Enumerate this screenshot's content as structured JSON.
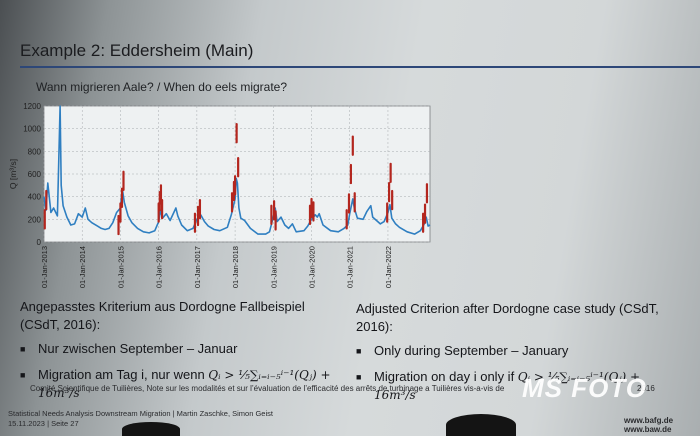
{
  "slide": {
    "title": "Example 2: Eddersheim (Main)",
    "subtitle": "Wann migrieren Aale? / When do eels migrate?"
  },
  "chart_data": {
    "type": "line",
    "ylabel": "Q [m³/s]",
    "ylim": [
      0,
      1200
    ],
    "yticks": [
      0,
      200,
      400,
      600,
      800,
      1000,
      1200
    ],
    "xtick_labels": [
      "01-Jan-2013",
      "01-Jan-2014",
      "01-Jan-2015",
      "01-Jan-2016",
      "01-Jan-2017",
      "01-Jan-2018",
      "01-Jan-2019",
      "01-Jan-2020",
      "01-Jan-2021",
      "01-Jan-2022"
    ],
    "x_range_years": [
      2013.0,
      2023.1
    ],
    "grid": true,
    "series": [
      {
        "color": "#2f7fc1",
        "points": [
          [
            2013.0,
            400
          ],
          [
            2013.05,
            280
          ],
          [
            2013.1,
            520
          ],
          [
            2013.18,
            260
          ],
          [
            2013.25,
            300
          ],
          [
            2013.35,
            230
          ],
          [
            2013.42,
            1200
          ],
          [
            2013.45,
            500
          ],
          [
            2013.5,
            320
          ],
          [
            2013.6,
            220
          ],
          [
            2013.7,
            150
          ],
          [
            2013.8,
            160
          ],
          [
            2013.9,
            250
          ],
          [
            2014.0,
            220
          ],
          [
            2014.08,
            300
          ],
          [
            2014.15,
            200
          ],
          [
            2014.25,
            170
          ],
          [
            2014.4,
            140
          ],
          [
            2014.5,
            120
          ],
          [
            2014.6,
            110
          ],
          [
            2014.7,
            120
          ],
          [
            2014.8,
            170
          ],
          [
            2014.9,
            260
          ],
          [
            2015.0,
            300
          ],
          [
            2015.05,
            470
          ],
          [
            2015.1,
            350
          ],
          [
            2015.2,
            230
          ],
          [
            2015.3,
            170
          ],
          [
            2015.45,
            120
          ],
          [
            2015.6,
            90
          ],
          [
            2015.75,
            80
          ],
          [
            2015.9,
            100
          ],
          [
            2016.0,
            180
          ],
          [
            2016.05,
            280
          ],
          [
            2016.1,
            210
          ],
          [
            2016.2,
            250
          ],
          [
            2016.3,
            190
          ],
          [
            2016.45,
            300
          ],
          [
            2016.5,
            230
          ],
          [
            2016.6,
            150
          ],
          [
            2016.75,
            100
          ],
          [
            2016.9,
            120
          ],
          [
            2017.0,
            200
          ],
          [
            2017.1,
            240
          ],
          [
            2017.2,
            180
          ],
          [
            2017.3,
            140
          ],
          [
            2017.45,
            110
          ],
          [
            2017.6,
            100
          ],
          [
            2017.8,
            130
          ],
          [
            2017.9,
            240
          ],
          [
            2018.0,
            380
          ],
          [
            2018.03,
            560
          ],
          [
            2018.06,
            520
          ],
          [
            2018.1,
            300
          ],
          [
            2018.15,
            210
          ],
          [
            2018.25,
            190
          ],
          [
            2018.4,
            120
          ],
          [
            2018.6,
            70
          ],
          [
            2018.8,
            70
          ],
          [
            2018.9,
            90
          ],
          [
            2019.0,
            220
          ],
          [
            2019.05,
            300
          ],
          [
            2019.1,
            180
          ],
          [
            2019.2,
            220
          ],
          [
            2019.3,
            150
          ],
          [
            2019.4,
            120
          ],
          [
            2019.5,
            160
          ],
          [
            2019.6,
            90
          ],
          [
            2019.8,
            100
          ],
          [
            2019.9,
            140
          ],
          [
            2020.0,
            200
          ],
          [
            2020.1,
            240
          ],
          [
            2020.15,
            220
          ],
          [
            2020.2,
            250
          ],
          [
            2020.3,
            150
          ],
          [
            2020.5,
            100
          ],
          [
            2020.7,
            90
          ],
          [
            2020.85,
            120
          ],
          [
            2020.95,
            150
          ],
          [
            2021.0,
            250
          ],
          [
            2021.08,
            380
          ],
          [
            2021.12,
            300
          ],
          [
            2021.2,
            210
          ],
          [
            2021.35,
            200
          ],
          [
            2021.45,
            270
          ],
          [
            2021.55,
            320
          ],
          [
            2021.6,
            220
          ],
          [
            2021.7,
            190
          ],
          [
            2021.8,
            160
          ],
          [
            2021.9,
            180
          ],
          [
            2022.0,
            260
          ],
          [
            2022.05,
            330
          ],
          [
            2022.1,
            210
          ],
          [
            2022.2,
            160
          ],
          [
            2022.3,
            130
          ],
          [
            2022.5,
            90
          ],
          [
            2022.7,
            70
          ],
          [
            2022.85,
            100
          ],
          [
            2022.95,
            160
          ],
          [
            2023.0,
            220
          ],
          [
            2023.05,
            140
          ],
          [
            2023.1,
            150
          ]
        ]
      },
      {
        "color": "#b3261e",
        "points": [
          [
            2013.02,
            280
          ],
          [
            2013.06,
            450
          ],
          [
            2014.95,
            230
          ],
          [
            2015.0,
            340
          ],
          [
            2015.04,
            470
          ],
          [
            2015.08,
            620
          ],
          [
            2016.0,
            340
          ],
          [
            2016.03,
            440
          ],
          [
            2016.06,
            500
          ],
          [
            2016.09,
            370
          ],
          [
            2016.95,
            250
          ],
          [
            2017.03,
            310
          ],
          [
            2017.08,
            370
          ],
          [
            2017.92,
            430
          ],
          [
            2017.97,
            530
          ],
          [
            2018.0,
            580
          ],
          [
            2018.04,
            1040
          ],
          [
            2018.08,
            740
          ],
          [
            2018.95,
            320
          ],
          [
            2019.02,
            360
          ],
          [
            2019.06,
            270
          ],
          [
            2019.96,
            320
          ],
          [
            2020.0,
            380
          ],
          [
            2020.05,
            350
          ],
          [
            2020.92,
            280
          ],
          [
            2020.98,
            420
          ],
          [
            2021.03,
            680
          ],
          [
            2021.08,
            930
          ],
          [
            2021.13,
            430
          ],
          [
            2021.98,
            340
          ],
          [
            2022.03,
            520
          ],
          [
            2022.07,
            690
          ],
          [
            2022.11,
            450
          ],
          [
            2022.92,
            250
          ],
          [
            2022.97,
            330
          ],
          [
            2023.02,
            510
          ]
        ]
      }
    ]
  },
  "left_block": {
    "heading": "Angepasstes Kriterium aus Dordogne Fallbeispiel (CSdT, 2016):",
    "bullet1": "Nur zwischen September – Januar",
    "bullet2_text": "Migration am Tag i, nur wenn ",
    "formula": "Qᵢ > ⅕∑ᵢ₌ᵢ₋₅ⁱ⁻¹(Qⱼ) + 16m³/s"
  },
  "right_block": {
    "heading": "Adjusted Criterion after Dordogne case study (CSdT, 2016):",
    "bullet1": "Only during September – January",
    "bullet2_text": "Migration on day i only if ",
    "formula": "Qᵢ > ⅕∑ᵢ₌ᵢ₋₅ⁱ⁻¹(Qⱼ) + 16m³/s"
  },
  "bullet_glyph": "■",
  "footnote": "Comité Scientifique de Tuilières, Note sur les modalités et sur l’évaluation de l’efficacité des arrêts de turbinage a Tuilières vis-a-vis de",
  "footnote_tail": "2016",
  "footer": {
    "line1": "Statistical Needs Analysis Downstream Migration | Martin Zaschke, Simon Geist",
    "line2": "15.11.2023 | Seite 27",
    "site1": "www.bafg.de",
    "site2": "www.baw.de"
  },
  "watermark": "MS FOTO"
}
